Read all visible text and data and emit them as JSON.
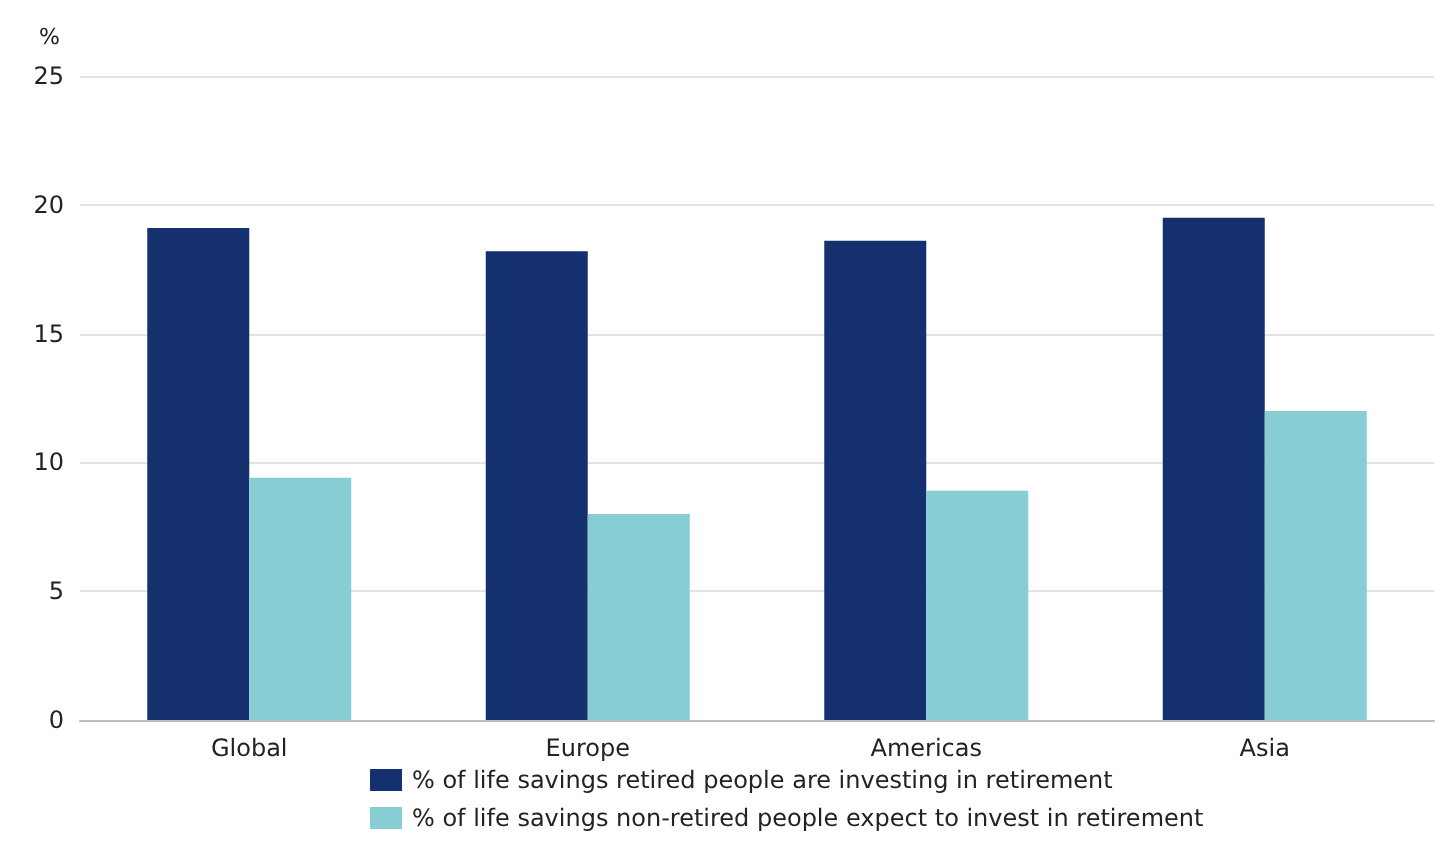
{
  "chart_data": {
    "type": "bar",
    "ylabel": "%",
    "categories": [
      "Global",
      "Europe",
      "Americas",
      "Asia"
    ],
    "series": [
      {
        "name": "% of life savings retired people are investing in retirement",
        "color": "#14306f",
        "values": [
          19.1,
          18.2,
          18.6,
          19.5
        ]
      },
      {
        "name": "% of life savings non-retired people expect to invest in retirement",
        "color": "#88ccd4",
        "values": [
          9.4,
          8.0,
          8.9,
          12.0
        ]
      }
    ],
    "ylim": [
      0,
      25
    ],
    "yticks": [
      0,
      5,
      10,
      15,
      20,
      25
    ],
    "grid": "y",
    "legend": "bottom"
  }
}
